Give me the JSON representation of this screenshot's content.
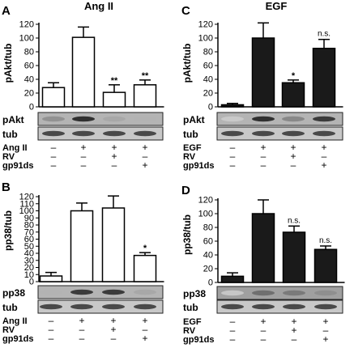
{
  "chart_data": [
    {
      "type": "bar",
      "panel_label": "A",
      "title": "Ang II",
      "ylabel": "pAkt/tub",
      "ylim": [
        0,
        120
      ],
      "yticks": [
        0,
        20,
        40,
        60,
        80,
        100,
        120
      ],
      "bar_color": "#ffffff",
      "values": [
        28,
        101,
        21,
        32
      ],
      "errors": [
        7,
        15,
        11,
        7
      ],
      "sig": [
        "",
        "",
        "**",
        "**"
      ],
      "blots": [
        {
          "label": "pAkt",
          "band_darkness": [
            0.45,
            0.9,
            0.35,
            0.3
          ],
          "bg": "#b4b4b4"
        },
        {
          "label": "tub",
          "band_darkness": [
            0.8,
            0.8,
            0.8,
            0.8
          ],
          "bg": "#c8c8c8"
        }
      ],
      "conditions": [
        {
          "label": "Ang II",
          "signs": [
            "–",
            "+",
            "+",
            "+"
          ]
        },
        {
          "label": "RV",
          "signs": [
            "–",
            "–",
            "+",
            "–"
          ]
        },
        {
          "label": "gp91ds",
          "signs": [
            "–",
            "–",
            "–",
            "+"
          ]
        }
      ]
    },
    {
      "type": "bar",
      "panel_label": "C",
      "title": "EGF",
      "ylabel": "pAkt/tub",
      "ylim": [
        0,
        120
      ],
      "yticks": [
        0,
        20,
        40,
        60,
        80,
        100,
        120
      ],
      "bar_color": "#1a1a1a",
      "values": [
        3,
        100,
        35,
        85
      ],
      "errors": [
        2,
        22,
        4,
        13
      ],
      "sig": [
        "",
        "",
        "*",
        "n.s."
      ],
      "blots": [
        {
          "label": "pAkt",
          "band_darkness": [
            0.2,
            0.9,
            0.5,
            0.85
          ],
          "bg": "#b4b4b4"
        },
        {
          "label": "tub",
          "band_darkness": [
            0.8,
            0.8,
            0.8,
            0.8
          ],
          "bg": "#c8c8c8"
        }
      ],
      "conditions": [
        {
          "label": "EGF",
          "signs": [
            "–",
            "+",
            "+",
            "+"
          ]
        },
        {
          "label": "RV",
          "signs": [
            "–",
            "–",
            "+",
            "–"
          ]
        },
        {
          "label": "gp91ds",
          "signs": [
            "–",
            "–",
            "–",
            "+"
          ]
        }
      ]
    },
    {
      "type": "bar",
      "panel_label": "B",
      "title": "",
      "ylabel": "pp38/tub",
      "ylim": [
        0,
        120
      ],
      "yticks": [
        0,
        10,
        20,
        30,
        40,
        50,
        60,
        70,
        80,
        90,
        100,
        110,
        120
      ],
      "bar_color": "#ffffff",
      "values": [
        8,
        100,
        104,
        37
      ],
      "errors": [
        5,
        11,
        17,
        4
      ],
      "sig": [
        "",
        "",
        "",
        "*"
      ],
      "blots": [
        {
          "label": "pp38",
          "band_darkness": [
            0.3,
            0.85,
            0.85,
            0.35
          ],
          "bg": "#b4b4b4"
        },
        {
          "label": "tub",
          "band_darkness": [
            0.8,
            0.8,
            0.8,
            0.8
          ],
          "bg": "#c8c8c8"
        }
      ],
      "conditions": [
        {
          "label": "Ang II",
          "signs": [
            "–",
            "+",
            "+",
            "+"
          ]
        },
        {
          "label": "RV",
          "signs": [
            "–",
            "–",
            "+",
            "–"
          ]
        },
        {
          "label": "gp91ds",
          "signs": [
            "–",
            "–",
            "–",
            "+"
          ]
        }
      ]
    },
    {
      "type": "bar",
      "panel_label": "D",
      "title": "",
      "ylabel": "pp38/tub",
      "ylim": [
        0,
        120
      ],
      "yticks": [
        0,
        20,
        40,
        60,
        80,
        100,
        120
      ],
      "bar_color": "#1a1a1a",
      "values": [
        9,
        100,
        73,
        48
      ],
      "errors": [
        5,
        20,
        9,
        5
      ],
      "sig": [
        "",
        "",
        "n.s.",
        "n.s."
      ],
      "blots": [
        {
          "label": "pp38",
          "band_darkness": [
            0.2,
            0.6,
            0.55,
            0.45
          ],
          "bg": "#a0a0a0"
        },
        {
          "label": "tub",
          "band_darkness": [
            0.8,
            0.8,
            0.8,
            0.8
          ],
          "bg": "#c8c8c8"
        }
      ],
      "conditions": [
        {
          "label": "EGF",
          "signs": [
            "–",
            "+",
            "+",
            "+"
          ]
        },
        {
          "label": "RV",
          "signs": [
            "–",
            "–",
            "+",
            "–"
          ]
        },
        {
          "label": "gp91ds",
          "signs": [
            "–",
            "–",
            "–",
            "+"
          ]
        }
      ]
    }
  ]
}
